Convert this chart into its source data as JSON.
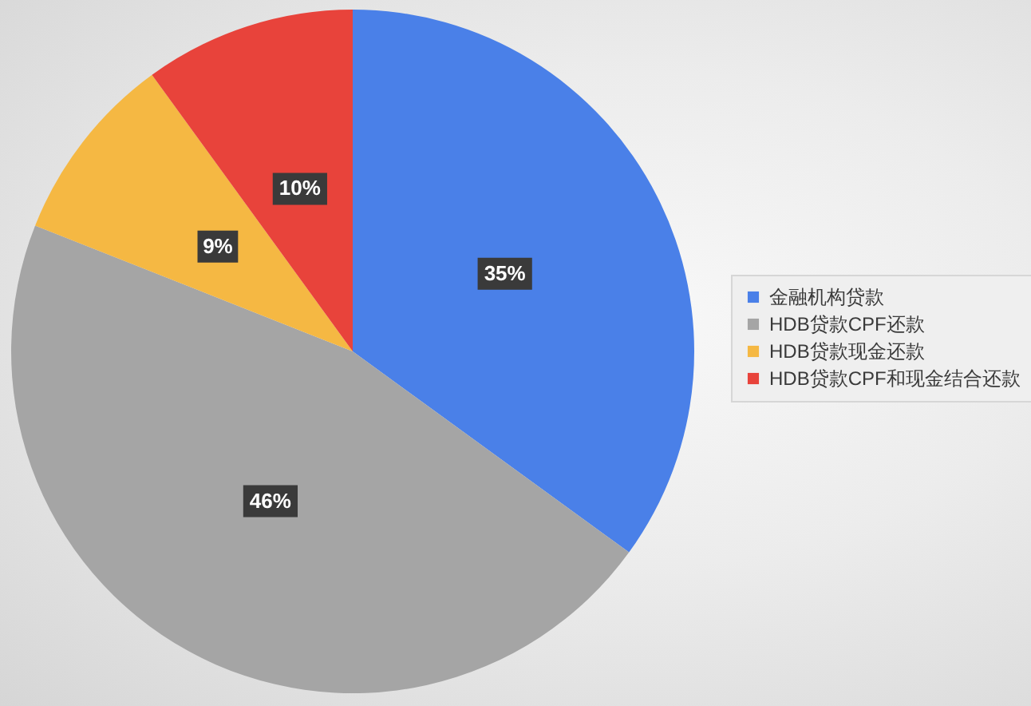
{
  "chart_data": {
    "type": "pie",
    "categories": [
      "金融机构贷款",
      "HDB贷款CPF还款",
      "HDB贷款现金还款",
      "HDB贷款CPF和现金结合还款"
    ],
    "values": [
      35,
      46,
      9,
      10
    ],
    "colors": [
      "#4a80e8",
      "#a5a5a5",
      "#f5b843",
      "#e8433b"
    ],
    "value_labels": [
      "35%",
      "46%",
      "9%",
      "10%"
    ],
    "legend": "right"
  }
}
